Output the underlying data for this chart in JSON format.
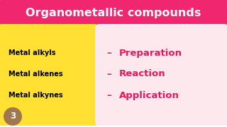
{
  "bg_color": "#ffffff",
  "title_text": "Organometallic compounds",
  "title_bg": "#f0266f",
  "title_text_color": "#ffffff",
  "yellow_box_color": "#ffe033",
  "yellow_box_text_color": "#000000",
  "yellow_items": [
    "Metal alkyls",
    "Metal alkenes",
    "Metal alkynes"
  ],
  "pink_box_color": "#fde8ee",
  "pink_items": [
    "Preparation",
    "Reaction",
    "Application"
  ],
  "pink_text_color": "#e8185a",
  "dash_color": "#e8185a",
  "number_text": "3",
  "number_bg": "#a07850",
  "title_fontsize": 11.5,
  "yellow_fontsize": 7.0,
  "pink_fontsize": 9.5
}
